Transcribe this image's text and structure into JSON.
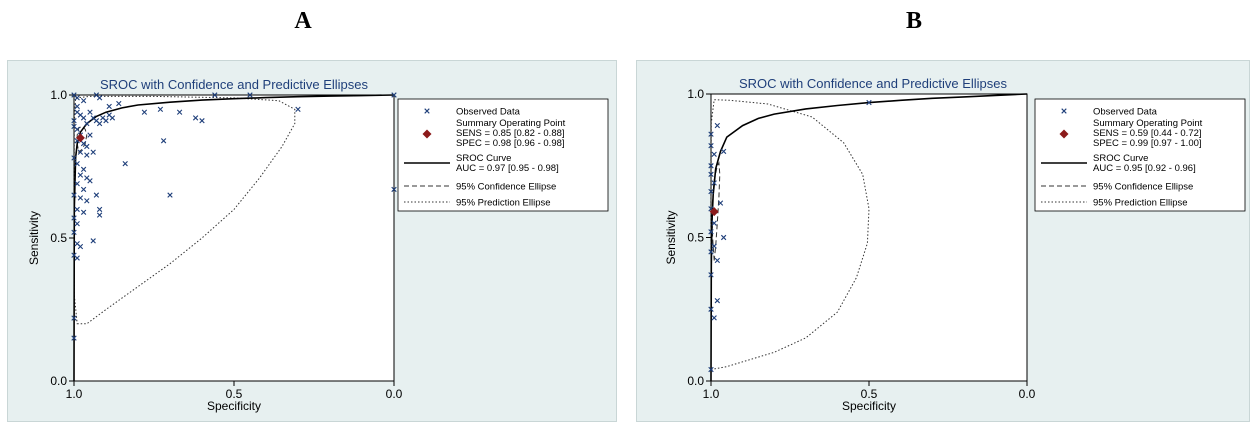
{
  "panel_letters": [
    "A",
    "B"
  ],
  "colors": {
    "background": "#e7f0f0",
    "plot_area": "#ffffff",
    "observed": "#1f3f7a",
    "summary_point": "#8b1a1a",
    "title": "#1f3f7a"
  },
  "legend": {
    "observed": "Observed Data",
    "summary": "Summary Operating Point",
    "sroc": "SROC Curve",
    "confidence": "95% Confidence Ellipse",
    "prediction": "95% Prediction Ellipse"
  },
  "chart_data": [
    {
      "type": "scatter",
      "title": "SROC with Confidence and Predictive Ellipses",
      "xlabel": "Specificity",
      "ylabel": "Sensitivity",
      "x_reversed": true,
      "xlim": [
        1.0,
        0.0
      ],
      "ylim": [
        0.0,
        1.0
      ],
      "xticks": [
        "1.0",
        "0.5",
        "0.0"
      ],
      "yticks": [
        "0.0",
        "0.5",
        "1.0"
      ],
      "sens_label": "SENS = 0.85 [0.82 - 0.88]",
      "spec_label": "SPEC = 0.98 [0.96 - 0.98]",
      "auc_label": "AUC = 0.97 [0.95 - 0.98]",
      "summary_point": {
        "spec": 0.98,
        "sens": 0.85
      },
      "observed": [
        [
          1.0,
          1.0
        ],
        [
          0.99,
          0.99
        ],
        [
          0.97,
          0.98
        ],
        [
          0.93,
          1.0
        ],
        [
          0.92,
          0.99
        ],
        [
          0.89,
          0.96
        ],
        [
          0.86,
          0.97
        ],
        [
          0.78,
          0.94
        ],
        [
          0.73,
          0.95
        ],
        [
          0.67,
          0.94
        ],
        [
          0.6,
          0.91
        ],
        [
          0.56,
          1.0
        ],
        [
          0.45,
          1.0
        ],
        [
          0.3,
          0.95
        ],
        [
          0.0,
          1.0
        ],
        [
          0.99,
          0.96
        ],
        [
          0.99,
          0.94
        ],
        [
          0.98,
          0.93
        ],
        [
          0.97,
          0.92
        ],
        [
          0.96,
          0.9
        ],
        [
          0.95,
          0.94
        ],
        [
          0.94,
          0.92
        ],
        [
          0.93,
          0.91
        ],
        [
          0.92,
          0.9
        ],
        [
          0.91,
          0.92
        ],
        [
          0.9,
          0.91
        ],
        [
          0.89,
          0.93
        ],
        [
          0.88,
          0.92
        ],
        [
          1.0,
          0.91
        ],
        [
          1.0,
          0.89
        ],
        [
          0.99,
          0.88
        ],
        [
          0.98,
          0.86
        ],
        [
          0.99,
          0.84
        ],
        [
          0.97,
          0.83
        ],
        [
          0.96,
          0.82
        ],
        [
          0.95,
          0.86
        ],
        [
          0.94,
          0.8
        ],
        [
          0.98,
          0.8
        ],
        [
          0.96,
          0.79
        ],
        [
          1.0,
          0.78
        ],
        [
          0.99,
          0.76
        ],
        [
          0.97,
          0.74
        ],
        [
          0.98,
          0.72
        ],
        [
          0.96,
          0.71
        ],
        [
          0.95,
          0.7
        ],
        [
          0.99,
          0.69
        ],
        [
          0.97,
          0.67
        ],
        [
          1.0,
          0.65
        ],
        [
          0.98,
          0.64
        ],
        [
          0.96,
          0.63
        ],
        [
          0.99,
          0.6
        ],
        [
          0.97,
          0.59
        ],
        [
          0.93,
          0.65
        ],
        [
          0.92,
          0.6
        ],
        [
          0.92,
          0.58
        ],
        [
          0.94,
          0.49
        ],
        [
          0.84,
          0.76
        ],
        [
          0.72,
          0.84
        ],
        [
          0.7,
          0.65
        ],
        [
          0.62,
          0.92
        ],
        [
          0.0,
          0.67
        ],
        [
          1.0,
          0.57
        ],
        [
          0.99,
          0.55
        ],
        [
          1.0,
          0.52
        ],
        [
          0.99,
          0.48
        ],
        [
          0.98,
          0.47
        ],
        [
          1.0,
          0.44
        ],
        [
          0.99,
          0.43
        ],
        [
          1.0,
          0.22
        ],
        [
          1.0,
          0.15
        ]
      ],
      "sroc_curve": [
        [
          1.0,
          0.0
        ],
        [
          0.999,
          0.6
        ],
        [
          0.995,
          0.78
        ],
        [
          0.99,
          0.83
        ],
        [
          0.98,
          0.87
        ],
        [
          0.96,
          0.9
        ],
        [
          0.93,
          0.925
        ],
        [
          0.9,
          0.94
        ],
        [
          0.85,
          0.955
        ],
        [
          0.8,
          0.965
        ],
        [
          0.7,
          0.975
        ],
        [
          0.6,
          0.982
        ],
        [
          0.5,
          0.987
        ],
        [
          0.4,
          0.991
        ],
        [
          0.3,
          0.994
        ],
        [
          0.2,
          0.996
        ],
        [
          0.1,
          0.998
        ],
        [
          0.0,
          1.0
        ]
      ],
      "confidence_ellipse": [
        [
          0.99,
          0.83
        ],
        [
          0.985,
          0.8
        ],
        [
          0.975,
          0.81
        ],
        [
          0.965,
          0.83
        ],
        [
          0.96,
          0.86
        ],
        [
          0.965,
          0.88
        ],
        [
          0.975,
          0.89
        ],
        [
          0.985,
          0.885
        ],
        [
          0.99,
          0.86
        ],
        [
          0.99,
          0.83
        ]
      ],
      "prediction_ellipse": [
        [
          0.99,
          0.2
        ],
        [
          0.96,
          0.2
        ],
        [
          0.9,
          0.25
        ],
        [
          0.8,
          0.33
        ],
        [
          0.7,
          0.41
        ],
        [
          0.6,
          0.5
        ],
        [
          0.5,
          0.6
        ],
        [
          0.42,
          0.71
        ],
        [
          0.35,
          0.82
        ],
        [
          0.31,
          0.9
        ],
        [
          0.31,
          0.95
        ],
        [
          0.36,
          0.98
        ],
        [
          0.5,
          0.99
        ],
        [
          0.75,
          0.995
        ],
        [
          0.95,
          0.995
        ],
        [
          0.995,
          0.99
        ],
        [
          0.999,
          0.9
        ],
        [
          0.999,
          0.6
        ],
        [
          0.999,
          0.3
        ],
        [
          0.99,
          0.2
        ]
      ]
    },
    {
      "type": "scatter",
      "title": "SROC with Confidence and Predictive Ellipses",
      "xlabel": "Specificity",
      "ylabel": "Sensitivity",
      "x_reversed": true,
      "xlim": [
        1.0,
        0.0
      ],
      "ylim": [
        0.0,
        1.0
      ],
      "xticks": [
        "1.0",
        "0.5",
        "0.0"
      ],
      "yticks": [
        "0.0",
        "0.5",
        "1.0"
      ],
      "sens_label": "SENS = 0.59 [0.44 - 0.72]",
      "spec_label": "SPEC = 0.99 [0.97 - 1.00]",
      "auc_label": "AUC = 0.95 [0.92 - 0.96]",
      "summary_point": {
        "spec": 0.99,
        "sens": 0.59
      },
      "observed": [
        [
          1.0,
          0.86
        ],
        [
          1.0,
          0.82
        ],
        [
          0.98,
          0.89
        ],
        [
          0.96,
          0.8
        ],
        [
          0.99,
          0.79
        ],
        [
          1.0,
          0.75
        ],
        [
          1.0,
          0.72
        ],
        [
          0.99,
          0.69
        ],
        [
          1.0,
          0.66
        ],
        [
          0.97,
          0.62
        ],
        [
          1.0,
          0.6
        ],
        [
          0.99,
          0.55
        ],
        [
          1.0,
          0.52
        ],
        [
          0.96,
          0.5
        ],
        [
          0.99,
          0.47
        ],
        [
          1.0,
          0.45
        ],
        [
          0.98,
          0.42
        ],
        [
          1.0,
          0.37
        ],
        [
          0.98,
          0.28
        ],
        [
          1.0,
          0.25
        ],
        [
          0.99,
          0.22
        ],
        [
          1.0,
          0.04
        ],
        [
          0.5,
          0.97
        ]
      ],
      "sroc_curve": [
        [
          1.0,
          0.0
        ],
        [
          0.999,
          0.4
        ],
        [
          0.997,
          0.55
        ],
        [
          0.993,
          0.65
        ],
        [
          0.985,
          0.74
        ],
        [
          0.97,
          0.8
        ],
        [
          0.95,
          0.85
        ],
        [
          0.9,
          0.89
        ],
        [
          0.85,
          0.915
        ],
        [
          0.8,
          0.93
        ],
        [
          0.7,
          0.948
        ],
        [
          0.6,
          0.96
        ],
        [
          0.5,
          0.97
        ],
        [
          0.4,
          0.978
        ],
        [
          0.3,
          0.985
        ],
        [
          0.2,
          0.99
        ],
        [
          0.1,
          0.995
        ],
        [
          0.0,
          1.0
        ]
      ],
      "confidence_ellipse": [
        [
          0.99,
          0.42
        ],
        [
          0.995,
          0.5
        ],
        [
          0.997,
          0.6
        ],
        [
          0.99,
          0.7
        ],
        [
          0.98,
          0.75
        ],
        [
          0.975,
          0.76
        ],
        [
          0.972,
          0.72
        ],
        [
          0.975,
          0.64
        ],
        [
          0.98,
          0.55
        ],
        [
          0.985,
          0.47
        ],
        [
          0.99,
          0.42
        ]
      ],
      "prediction_ellipse": [
        [
          1.0,
          0.04
        ],
        [
          0.95,
          0.05
        ],
        [
          0.8,
          0.1
        ],
        [
          0.7,
          0.15
        ],
        [
          0.6,
          0.24
        ],
        [
          0.54,
          0.36
        ],
        [
          0.505,
          0.48
        ],
        [
          0.5,
          0.6
        ],
        [
          0.52,
          0.72
        ],
        [
          0.58,
          0.83
        ],
        [
          0.68,
          0.92
        ],
        [
          0.82,
          0.965
        ],
        [
          0.94,
          0.978
        ],
        [
          0.99,
          0.98
        ],
        [
          0.999,
          0.9
        ],
        [
          1.0,
          0.5
        ],
        [
          1.0,
          0.04
        ]
      ]
    }
  ]
}
